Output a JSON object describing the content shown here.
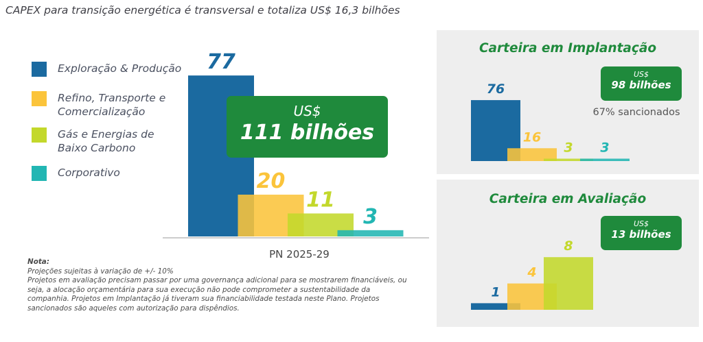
{
  "title": "CAPEX para transição energética é transversal e totaliza US$ 16,3 bilhões",
  "colors": {
    "ep": "#1b6aa0",
    "refino": "#fbc43b",
    "gas": "#c3d82b",
    "corporativo": "#22b6b3",
    "badge": "#1f8a3c"
  },
  "legend": [
    {
      "label": "Exploração & Produção",
      "color": "#1b6aa0"
    },
    {
      "label": "Refino, Transporte e\nComercialização",
      "color": "#fbc43b"
    },
    {
      "label": "Gás e Energias de\nBaixo Carbono",
      "color": "#c3d82b"
    },
    {
      "label": "Corporativo",
      "color": "#22b6b3"
    }
  ],
  "main_badge": {
    "line1": "US$",
    "line2": "111 bilhões"
  },
  "implantacao": {
    "title": "Carteira em Implantação",
    "badge_line1": "US$",
    "badge_line2": "98 bilhões",
    "sancionados": "67% sancionados"
  },
  "avaliacao": {
    "title": "Carteira em Avaliação",
    "badge_line1": "US$",
    "badge_line2": "13 bilhões"
  },
  "note": {
    "title": "Nota:",
    "lines": [
      "Projeções sujeitas à variação de +/- 10%",
      "Projetos em avaliação precisam passar por uma governança adicional para se mostrarem financiáveis, ou seja, a alocação orçamentária para sua execução não pode comprometer a sustentabilidade da companhia. Projetos em Implantação já tiveram sua financiabilidade testada neste Plano. Projetos sancionados são aqueles com autorização para dispêndios."
    ]
  },
  "chart_data": [
    {
      "type": "bar",
      "xlabel": "PN 2025-29",
      "categories": [
        "Exploração & Produção",
        "Refino, Transporte e Comercialização",
        "Gás e Energias de Baixo Carbono",
        "Corporativo"
      ],
      "values": [
        77,
        20,
        11,
        3
      ],
      "labels": [
        "77",
        "20",
        "11",
        "3"
      ]
    },
    {
      "type": "bar",
      "title": "Carteira em Implantação",
      "categories": [
        "Exploração & Produção",
        "Refino, Transporte e Comercialização",
        "Gás e Energias de Baixo Carbono",
        "Corporativo"
      ],
      "values": [
        76,
        16,
        3,
        3
      ],
      "labels": [
        "76",
        "16",
        "3",
        "3"
      ]
    },
    {
      "type": "bar",
      "title": "Carteira em Avaliação",
      "categories": [
        "Exploração & Produção",
        "Refino, Transporte e Comercialização",
        "Gás e Energias de Baixo Carbono"
      ],
      "values": [
        1,
        4,
        8
      ],
      "labels": [
        "1",
        "4",
        "8"
      ]
    }
  ]
}
